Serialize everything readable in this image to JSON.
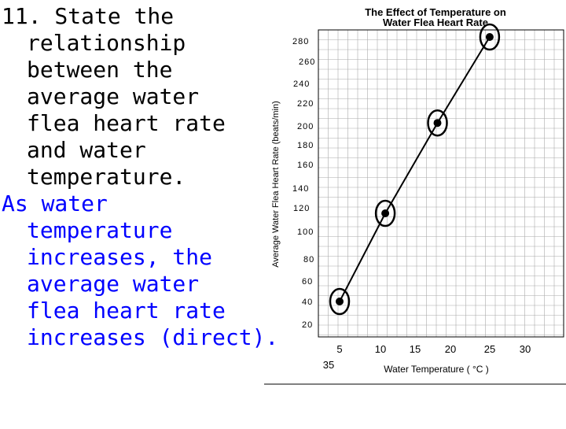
{
  "slide": {
    "question_lines": [
      "11. State the",
      "relationship",
      "between the",
      "average water",
      "flea heart rate",
      "and water",
      "temperature."
    ],
    "answer_lines": [
      "As water",
      "temperature",
      "increases, the",
      "average water",
      "flea heart rate",
      "increases (direct)."
    ]
  },
  "chart_data": {
    "type": "line",
    "title": "The Effect of Temperature on Water Flea Heart Rate",
    "title_lines": [
      "The Effect of Temperature on",
      "Water Flea Heart Rate"
    ],
    "xlabel": "Water Temperature ( °C )",
    "ylabel": "Average Water Flea Heart Rate (beats/min)",
    "x_ticks": [
      "5",
      "10",
      "15",
      "20",
      "25",
      "30"
    ],
    "x_extra_label": "35",
    "y_ticks": [
      "20",
      "40",
      "60",
      "80",
      "100",
      "120",
      "140",
      "160",
      "180",
      "200",
      "220",
      "240",
      "260",
      "280"
    ],
    "x": [
      5,
      12,
      20,
      28
    ],
    "y": [
      40,
      120,
      202,
      280
    ],
    "circled_points": true,
    "grid": true,
    "colors": {
      "line": "#000000",
      "grid": "#aaaaaa",
      "answer_text": "#0000ff"
    }
  }
}
